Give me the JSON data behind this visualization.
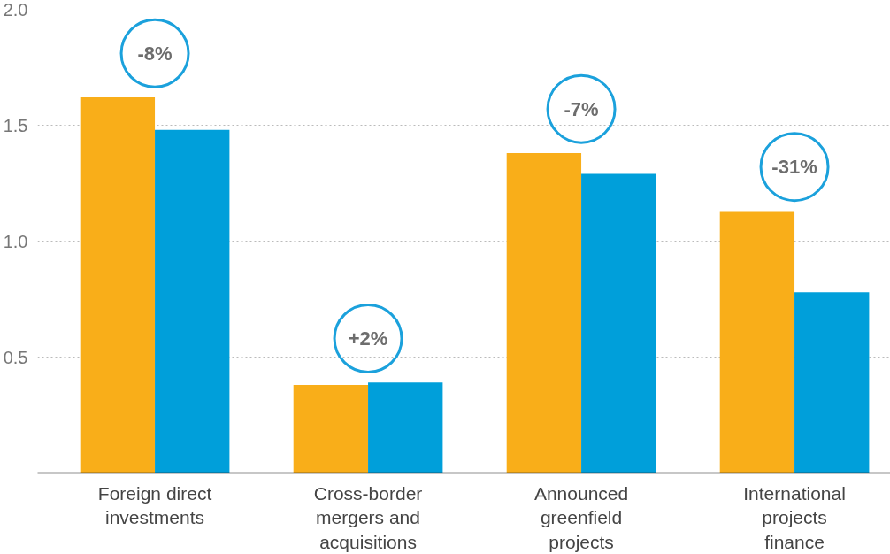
{
  "chart_data": {
    "type": "bar",
    "categories": [
      "Foreign direct investments",
      "Cross-border mergers and acquisitions",
      "Announced greenfield projects",
      "International projects finance"
    ],
    "series": [
      {
        "color": "#f9ae19",
        "values": [
          1.62,
          0.38,
          1.38,
          1.13
        ]
      },
      {
        "color": "#009fda",
        "values": [
          1.48,
          0.39,
          1.29,
          0.78
        ]
      }
    ],
    "ylim": [
      0,
      2.0
    ],
    "yticks": [
      {
        "value": 0.5,
        "label": "0.5"
      },
      {
        "value": 1,
        "label": "1.0"
      },
      {
        "value": 1.5,
        "label": "1.5"
      },
      {
        "value": 2,
        "label": "2.0"
      }
    ],
    "grid": "y",
    "annotations": [
      "-8%",
      "+2%",
      "-7%",
      "-31%"
    ]
  }
}
